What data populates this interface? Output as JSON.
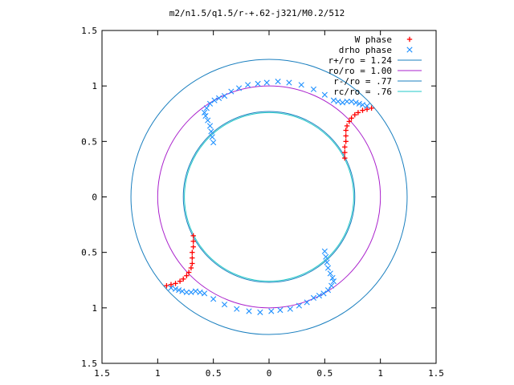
{
  "chart_data": {
    "type": "scatter",
    "title": "m2/n1.5/q1.5/r-+.62-j321/M0.2/512",
    "xlabel": "",
    "ylabel": "",
    "xlim": [
      -1.5,
      1.5
    ],
    "ylim": [
      -1.5,
      1.5
    ],
    "x_ticks": [
      -1.5,
      -1,
      -0.5,
      0,
      0.5,
      1,
      1.5
    ],
    "y_ticks": [
      -1.5,
      -1,
      -0.5,
      0,
      0.5,
      1,
      1.5
    ],
    "x_tick_labels": [
      "1.5",
      "1",
      "0.5",
      "0",
      "0.5",
      "1",
      "1.5"
    ],
    "y_tick_labels": [
      "1.5",
      "1",
      "0.5",
      "0",
      "0.5",
      "1",
      "1.5"
    ],
    "grid": false,
    "legend_position": "top-right",
    "series": [
      {
        "name": "W phase",
        "marker": "plus",
        "color": "#ff0000",
        "points": [
          [
            0.92,
            0.8
          ],
          [
            0.88,
            0.79
          ],
          [
            0.84,
            0.78
          ],
          [
            0.8,
            0.76
          ],
          [
            0.77,
            0.74
          ],
          [
            0.74,
            0.71
          ],
          [
            0.72,
            0.68
          ],
          [
            0.7,
            0.64
          ],
          [
            0.69,
            0.6
          ],
          [
            0.69,
            0.55
          ],
          [
            0.69,
            0.5
          ],
          [
            0.68,
            0.45
          ],
          [
            0.68,
            0.4
          ],
          [
            0.68,
            0.35
          ],
          [
            -0.68,
            -0.35
          ],
          [
            -0.68,
            -0.4
          ],
          [
            -0.68,
            -0.45
          ],
          [
            -0.69,
            -0.5
          ],
          [
            -0.69,
            -0.55
          ],
          [
            -0.69,
            -0.6
          ],
          [
            -0.7,
            -0.64
          ],
          [
            -0.72,
            -0.68
          ],
          [
            -0.74,
            -0.71
          ],
          [
            -0.77,
            -0.74
          ],
          [
            -0.8,
            -0.76
          ],
          [
            -0.84,
            -0.78
          ],
          [
            -0.88,
            -0.79
          ],
          [
            -0.92,
            -0.8
          ]
        ]
      },
      {
        "name": "drho phase",
        "marker": "cross",
        "color": "#1e90ff",
        "points": [
          [
            -0.5,
            0.49
          ],
          [
            -0.51,
            0.54
          ],
          [
            -0.52,
            0.59
          ],
          [
            -0.53,
            0.64
          ],
          [
            -0.55,
            0.69
          ],
          [
            -0.57,
            0.73
          ],
          [
            -0.58,
            0.76
          ],
          [
            -0.56,
            0.8
          ],
          [
            -0.53,
            0.84
          ],
          [
            -0.49,
            0.87
          ],
          [
            -0.45,
            0.89
          ],
          [
            -0.4,
            0.91
          ],
          [
            -0.34,
            0.95
          ],
          [
            -0.27,
            0.98
          ],
          [
            -0.19,
            1.01
          ],
          [
            -0.1,
            1.02
          ],
          [
            -0.02,
            1.03
          ],
          [
            0.08,
            1.04
          ],
          [
            0.18,
            1.03
          ],
          [
            0.29,
            1.01
          ],
          [
            0.4,
            0.97
          ],
          [
            0.5,
            0.92
          ],
          [
            0.58,
            0.87
          ],
          [
            0.62,
            0.86
          ],
          [
            0.66,
            0.85
          ],
          [
            0.7,
            0.86
          ],
          [
            0.74,
            0.86
          ],
          [
            0.78,
            0.85
          ],
          [
            0.81,
            0.84
          ],
          [
            0.84,
            0.83
          ],
          [
            0.88,
            0.82
          ],
          [
            0.5,
            -0.49
          ],
          [
            0.51,
            -0.54
          ],
          [
            0.52,
            -0.59
          ],
          [
            0.53,
            -0.64
          ],
          [
            0.55,
            -0.69
          ],
          [
            0.57,
            -0.73
          ],
          [
            0.58,
            -0.76
          ],
          [
            0.56,
            -0.8
          ],
          [
            0.53,
            -0.84
          ],
          [
            0.49,
            -0.87
          ],
          [
            0.45,
            -0.89
          ],
          [
            0.4,
            -0.91
          ],
          [
            0.34,
            -0.95
          ],
          [
            0.27,
            -0.98
          ],
          [
            0.19,
            -1.01
          ],
          [
            0.1,
            -1.02
          ],
          [
            0.02,
            -1.03
          ],
          [
            -0.08,
            -1.04
          ],
          [
            -0.18,
            -1.03
          ],
          [
            -0.29,
            -1.01
          ],
          [
            -0.4,
            -0.97
          ],
          [
            -0.5,
            -0.92
          ],
          [
            -0.58,
            -0.87
          ],
          [
            -0.62,
            -0.86
          ],
          [
            -0.66,
            -0.85
          ],
          [
            -0.7,
            -0.86
          ],
          [
            -0.74,
            -0.86
          ],
          [
            -0.78,
            -0.85
          ],
          [
            -0.81,
            -0.84
          ],
          [
            -0.84,
            -0.83
          ],
          [
            -0.88,
            -0.82
          ]
        ]
      },
      {
        "name": "r+/ro = 1.24",
        "type": "circle",
        "radius": 1.24,
        "color": "#1a7fbf"
      },
      {
        "name": "ro/ro = 1.00",
        "type": "circle",
        "radius": 1.0,
        "color": "#aa22cc"
      },
      {
        "name": "r-/ro = .77",
        "type": "circle",
        "radius": 0.77,
        "color": "#1a7fbf"
      },
      {
        "name": "rc/ro = .76",
        "type": "circle",
        "radius": 0.76,
        "color": "#22c8c8"
      }
    ]
  }
}
